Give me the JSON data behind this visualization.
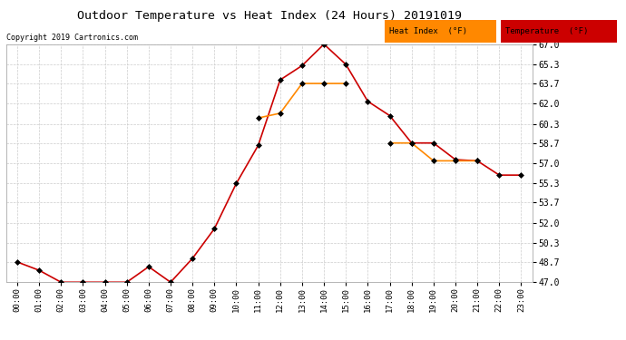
{
  "title": "Outdoor Temperature vs Heat Index (24 Hours) 20191019",
  "copyright": "Copyright 2019 Cartronics.com",
  "background_color": "#ffffff",
  "grid_color": "#cccccc",
  "x_labels": [
    "00:00",
    "01:00",
    "02:00",
    "03:00",
    "04:00",
    "05:00",
    "06:00",
    "07:00",
    "08:00",
    "09:00",
    "10:00",
    "11:00",
    "12:00",
    "13:00",
    "14:00",
    "15:00",
    "16:00",
    "17:00",
    "18:00",
    "19:00",
    "20:00",
    "21:00",
    "22:00",
    "23:00"
  ],
  "y_ticks": [
    47.0,
    48.7,
    50.3,
    52.0,
    53.7,
    55.3,
    57.0,
    58.7,
    60.3,
    62.0,
    63.7,
    65.3,
    67.0
  ],
  "ylim": [
    47.0,
    67.0
  ],
  "temperature": [
    48.7,
    48.0,
    47.0,
    47.0,
    47.0,
    47.0,
    48.3,
    47.0,
    49.0,
    51.5,
    55.3,
    58.5,
    64.0,
    65.2,
    67.0,
    65.3,
    62.2,
    61.0,
    58.7,
    58.7,
    57.3,
    57.2,
    56.0,
    56.0
  ],
  "heat_index": [
    null,
    null,
    null,
    null,
    null,
    null,
    null,
    null,
    null,
    null,
    null,
    60.8,
    61.2,
    63.7,
    63.7,
    63.7,
    null,
    58.7,
    58.7,
    57.2,
    57.2,
    57.2,
    null,
    null
  ],
  "temp_color": "#cc0000",
  "heat_color": "#ff8800",
  "marker_color": "#000000",
  "marker": "D",
  "marker_size": 3,
  "legend_heat_bg": "#ff8800",
  "legend_temp_bg": "#cc0000",
  "legend_text": [
    "Heat Index  (°F)",
    "Temperature  (°F)"
  ]
}
